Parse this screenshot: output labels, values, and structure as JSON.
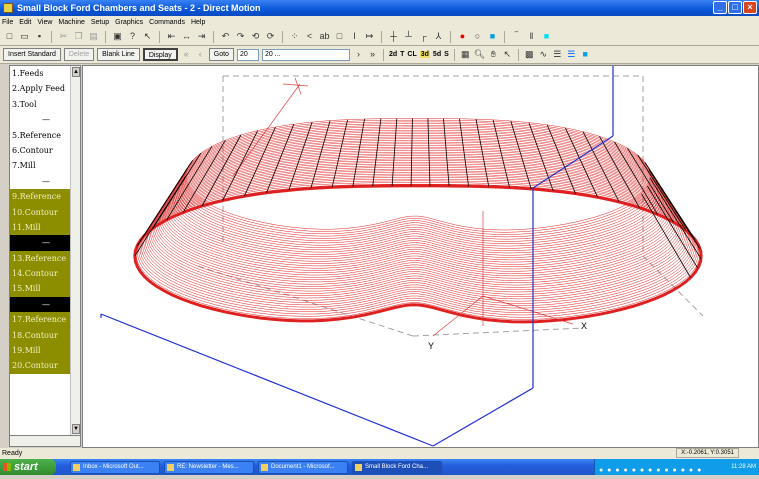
{
  "window": {
    "title": "Small Block Ford Chambers and Seats - 2 - Direct Motion"
  },
  "menu": [
    "File",
    "Edit",
    "View",
    "Machine",
    "Setup",
    "Graphics",
    "Commands",
    "Help"
  ],
  "toolbar2": {
    "insert_standard": "Insert Standard",
    "delete": "Delete",
    "blank_line": "Blank Line",
    "display": "Display",
    "goto_label": "Goto",
    "goto_value": "20",
    "goto_combo": "20 ...",
    "view_2d": "2d",
    "view_t": "T",
    "view_cl": "CL",
    "view_3d": "3d",
    "view_5d": "5d",
    "view_s": "S"
  },
  "sidebar": {
    "items": [
      {
        "label": "1.Feeds",
        "style": "plain"
      },
      {
        "label": "2.Apply Feed",
        "style": "plain"
      },
      {
        "label": "3.Tool",
        "style": "plain"
      },
      {
        "label": "—",
        "style": "sep"
      },
      {
        "label": "5.Reference",
        "style": "plain"
      },
      {
        "label": "6.Contour",
        "style": "plain"
      },
      {
        "label": "7.Mill",
        "style": "plain"
      },
      {
        "label": "—",
        "style": "sep"
      },
      {
        "label": "9.Reference",
        "style": "olive"
      },
      {
        "label": "10.Contour",
        "style": "olive"
      },
      {
        "label": "11.Mill",
        "style": "olive"
      },
      {
        "label": "—",
        "style": "black"
      },
      {
        "label": "13.Reference",
        "style": "olive"
      },
      {
        "label": "14.Contour",
        "style": "olive"
      },
      {
        "label": "15.Mill",
        "style": "olive"
      },
      {
        "label": "—",
        "style": "black"
      },
      {
        "label": "17.Reference",
        "style": "olive"
      },
      {
        "label": "18.Contour",
        "style": "olive"
      },
      {
        "label": "19.Mill",
        "style": "olive"
      },
      {
        "label": "20.Contour",
        "style": "olive"
      }
    ]
  },
  "viewport": {
    "axis_x": "X",
    "axis_y": "Y",
    "surface_color": "#e02020",
    "box_color": "#2030d0"
  },
  "status": {
    "text": "Ready",
    "coords": "X:-0.2061, Y:0.3051"
  },
  "taskbar": {
    "start": "start",
    "tasks": [
      "Inbox - Microsoft Out...",
      "RE: Newsletter - Mes...",
      "Document1 - Microsof...",
      "Small Block Ford Cha..."
    ],
    "clock": "11:28 AM"
  }
}
